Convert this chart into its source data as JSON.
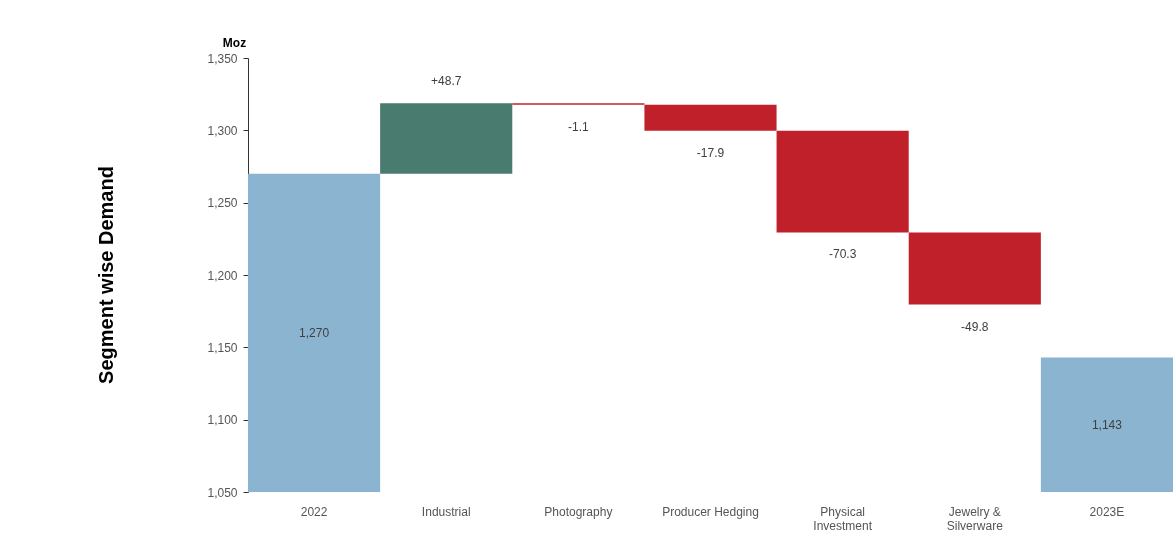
{
  "chart_data": {
    "type": "bar",
    "title": "Segment wise Demand",
    "ylabel": "Moz",
    "categories": [
      "2022",
      "Industrial",
      "Photography",
      "Producer Hedging",
      "Physical Investment",
      "Jewelry & Silverware",
      "2023E"
    ],
    "values": [
      1270,
      48.7,
      -1.1,
      -17.9,
      -70.3,
      -49.8,
      1143
    ],
    "base": [
      null,
      1270,
      1318.7,
      1317.6,
      1299.7,
      1229.4,
      null
    ],
    "colors": [
      "#8ab4cf",
      "#4a7b6f",
      "#c0202a",
      "#c0202a",
      "#c0202a",
      "#c0202a",
      "#8ab4cf"
    ],
    "value_labels": [
      "1,270",
      "+48.7",
      "-1.1",
      "-17.9",
      "-70.3",
      "-49.8",
      "1,143"
    ],
    "ylim": [
      1050,
      1350
    ],
    "yticks": [
      {
        "value": 1050,
        "label": "1,050"
      },
      {
        "value": 1100,
        "label": "1,100"
      },
      {
        "value": 1150,
        "label": "1,150"
      },
      {
        "value": 1200,
        "label": "1,200"
      },
      {
        "value": 1250,
        "label": "1,250"
      },
      {
        "value": 1300,
        "label": "1,300"
      },
      {
        "value": 1350,
        "label": "1,350"
      }
    ]
  }
}
